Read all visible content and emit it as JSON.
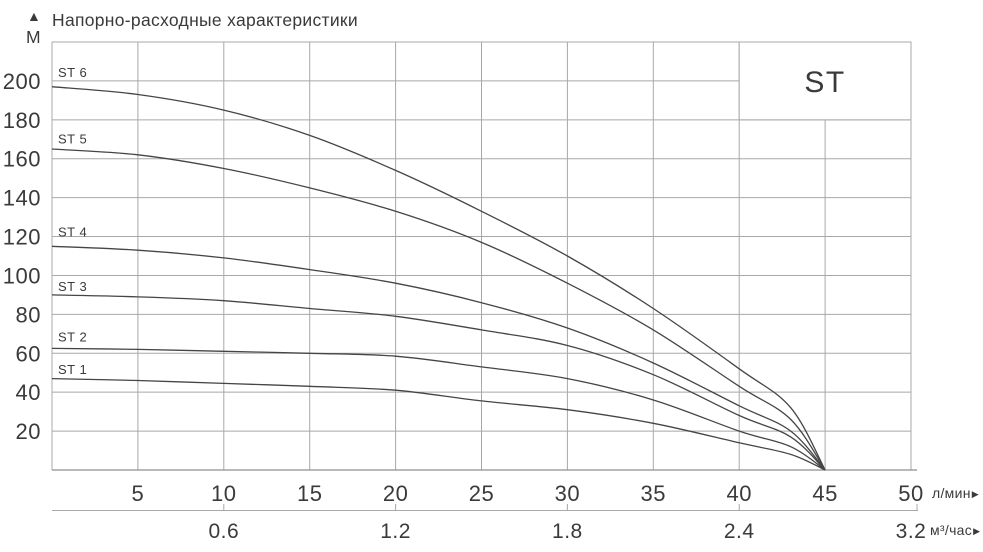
{
  "chart_data": {
    "type": "line",
    "title": "Напорно-расходные характеристики",
    "family_label": "ST",
    "y_axis": {
      "unit": "М",
      "arrow_icon": "▲",
      "range": [
        0,
        220
      ],
      "tick_step": 20,
      "ticks": [
        20,
        40,
        60,
        80,
        100,
        120,
        140,
        160,
        180,
        200
      ],
      "gridlines": true
    },
    "x_axis_primary": {
      "unit": "л/мин",
      "arrow_icon": "▶",
      "range": [
        0,
        50
      ],
      "tick_step": 5,
      "ticks": [
        5,
        10,
        15,
        20,
        25,
        30,
        35,
        40,
        45,
        50
      ],
      "gridlines": true
    },
    "x_axis_secondary": {
      "unit": "м³/час",
      "arrow_icon": "▶",
      "ticks": [
        {
          "label": "0.6",
          "at_lmin": 10
        },
        {
          "label": "1.2",
          "at_lmin": 20
        },
        {
          "label": "1.8",
          "at_lmin": 30
        },
        {
          "label": "2.4",
          "at_lmin": 40
        },
        {
          "label": "3.2",
          "at_lmin": 50
        }
      ]
    },
    "series": [
      {
        "name": "ST 6",
        "label_pos": {
          "x": 0.35,
          "y": 204
        },
        "points": [
          [
            0,
            197
          ],
          [
            5,
            193
          ],
          [
            10,
            185
          ],
          [
            15,
            172
          ],
          [
            20,
            154
          ],
          [
            25,
            133
          ],
          [
            30,
            110
          ],
          [
            35,
            83
          ],
          [
            40,
            52
          ],
          [
            43,
            32
          ],
          [
            45,
            0
          ]
        ]
      },
      {
        "name": "ST 5",
        "label_pos": {
          "x": 0.35,
          "y": 170
        },
        "points": [
          [
            0,
            165
          ],
          [
            5,
            162
          ],
          [
            10,
            155
          ],
          [
            15,
            145
          ],
          [
            20,
            133
          ],
          [
            25,
            117
          ],
          [
            30,
            96
          ],
          [
            35,
            72
          ],
          [
            40,
            43
          ],
          [
            43,
            26
          ],
          [
            45,
            0
          ]
        ]
      },
      {
        "name": "ST 4",
        "label_pos": {
          "x": 0.35,
          "y": 122
        },
        "points": [
          [
            0,
            115
          ],
          [
            5,
            113
          ],
          [
            10,
            109
          ],
          [
            15,
            103
          ],
          [
            20,
            96
          ],
          [
            25,
            86
          ],
          [
            30,
            73
          ],
          [
            35,
            55
          ],
          [
            40,
            33
          ],
          [
            43,
            20
          ],
          [
            45,
            0
          ]
        ]
      },
      {
        "name": "ST 3",
        "label_pos": {
          "x": 0.35,
          "y": 94
        },
        "points": [
          [
            0,
            90
          ],
          [
            5,
            89
          ],
          [
            10,
            87
          ],
          [
            15,
            83
          ],
          [
            20,
            79
          ],
          [
            25,
            72
          ],
          [
            30,
            64
          ],
          [
            35,
            49
          ],
          [
            40,
            28
          ],
          [
            43,
            17
          ],
          [
            45,
            0
          ]
        ]
      },
      {
        "name": "ST 2",
        "label_pos": {
          "x": 0.35,
          "y": 68
        },
        "points": [
          [
            0,
            62.5
          ],
          [
            5,
            62
          ],
          [
            10,
            61
          ],
          [
            15,
            60
          ],
          [
            20,
            58.5
          ],
          [
            25,
            53
          ],
          [
            30,
            47
          ],
          [
            35,
            36
          ],
          [
            40,
            20
          ],
          [
            43,
            12
          ],
          [
            45,
            0
          ]
        ]
      },
      {
        "name": "ST 1",
        "label_pos": {
          "x": 0.35,
          "y": 51.5
        },
        "points": [
          [
            0,
            47
          ],
          [
            5,
            46
          ],
          [
            10,
            44.5
          ],
          [
            15,
            43
          ],
          [
            20,
            41
          ],
          [
            25,
            35.5
          ],
          [
            30,
            31
          ],
          [
            35,
            24
          ],
          [
            40,
            14
          ],
          [
            43,
            8
          ],
          [
            45,
            0
          ]
        ]
      }
    ],
    "colors": {
      "background": "#ffffff",
      "grid": "#a8a8a8",
      "axis": "#8f8f8f",
      "curve": "#454545",
      "text": "#3a3a3a"
    },
    "legend_position": "top-right-box"
  }
}
